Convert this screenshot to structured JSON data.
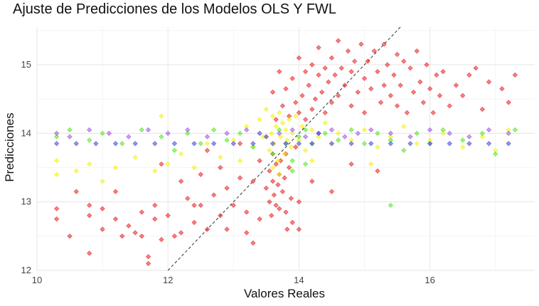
{
  "chart_data": {
    "type": "scatter",
    "title": "Ajuste de Predicciones de los Modelos OLS Y FWL",
    "xlabel": "Valores Reales",
    "ylabel": "Predicciones",
    "xlim": [
      10,
      17.6
    ],
    "ylim": [
      12,
      15.55
    ],
    "x_ticks": [
      10,
      12,
      14,
      16
    ],
    "y_ticks": [
      12,
      13,
      14,
      15
    ],
    "x_tick_labels": [
      "10",
      "12",
      "14",
      "16"
    ],
    "y_tick_labels": [
      "12",
      "13",
      "14",
      "15"
    ],
    "grid": true,
    "legend": "none",
    "reference_line": {
      "style": "dashed",
      "color": "#333333",
      "slope": 1,
      "intercept": 0
    },
    "colors": {
      "red": "#e8171b",
      "yellow": "#f2f200",
      "green": "#4de31c",
      "purple": "#9a4ee0",
      "blue": "#3c3cdc"
    },
    "series": [
      {
        "color": "#e8171b",
        "points": [
          [
            10.3,
            12.9
          ],
          [
            10.3,
            12.75
          ],
          [
            10.5,
            12.5
          ],
          [
            10.6,
            13.15
          ],
          [
            10.8,
            12.95
          ],
          [
            10.8,
            12.8
          ],
          [
            10.8,
            12.25
          ],
          [
            11.0,
            12.9
          ],
          [
            11.0,
            12.6
          ],
          [
            11.2,
            13.15
          ],
          [
            11.2,
            12.75
          ],
          [
            11.4,
            12.65
          ],
          [
            11.5,
            12.55
          ],
          [
            11.6,
            12.85
          ],
          [
            11.6,
            12.5
          ],
          [
            11.7,
            12.2
          ],
          [
            11.7,
            12.1
          ],
          [
            11.8,
            12.95
          ],
          [
            11.8,
            12.75
          ],
          [
            11.9,
            12.45
          ],
          [
            11.9,
            13.55
          ],
          [
            12.0,
            12.8
          ],
          [
            12.1,
            12.5
          ],
          [
            12.2,
            13.3
          ],
          [
            12.2,
            12.55
          ],
          [
            12.3,
            13.05
          ],
          [
            12.4,
            12.7
          ],
          [
            12.5,
            13.4
          ],
          [
            12.5,
            12.95
          ],
          [
            12.6,
            12.6
          ],
          [
            12.6,
            13.75
          ],
          [
            12.7,
            13.1
          ],
          [
            12.8,
            12.8
          ],
          [
            12.8,
            13.5
          ],
          [
            12.9,
            13.2
          ],
          [
            13.0,
            12.95
          ],
          [
            13.1,
            13.35
          ],
          [
            13.1,
            13.85
          ],
          [
            13.2,
            12.85
          ],
          [
            13.3,
            13.3
          ],
          [
            13.3,
            12.4
          ],
          [
            13.4,
            13.6
          ],
          [
            13.5,
            13.2
          ],
          [
            13.5,
            13.95
          ],
          [
            13.55,
            13.0
          ],
          [
            13.55,
            13.45
          ],
          [
            13.58,
            12.8
          ],
          [
            13.6,
            13.7
          ],
          [
            13.6,
            13.3
          ],
          [
            13.6,
            14.6
          ],
          [
            13.62,
            13.1
          ],
          [
            13.65,
            12.95
          ],
          [
            13.65,
            13.55
          ],
          [
            13.65,
            14.2
          ],
          [
            13.68,
            13.25
          ],
          [
            13.7,
            12.9
          ],
          [
            13.7,
            13.4
          ],
          [
            13.7,
            14.9
          ],
          [
            13.72,
            13.6
          ],
          [
            13.75,
            13.15
          ],
          [
            13.75,
            14.4
          ],
          [
            13.78,
            13.35
          ],
          [
            13.8,
            12.85
          ],
          [
            13.8,
            13.7
          ],
          [
            13.8,
            14.65
          ],
          [
            13.82,
            12.6
          ],
          [
            13.85,
            13.5
          ],
          [
            13.85,
            14.25
          ],
          [
            13.88,
            13.05
          ],
          [
            13.9,
            14.8
          ],
          [
            13.9,
            12.7
          ],
          [
            13.95,
            13.8
          ],
          [
            13.95,
            14.45
          ],
          [
            14.0,
            14.3
          ],
          [
            14.0,
            12.6
          ],
          [
            14.0,
            15.1
          ],
          [
            14.05,
            14.55
          ],
          [
            14.1,
            14.2
          ],
          [
            14.1,
            14.9
          ],
          [
            14.15,
            14.7
          ],
          [
            14.2,
            14.35
          ],
          [
            14.2,
            15.0
          ],
          [
            14.25,
            14.5
          ],
          [
            14.3,
            14.85
          ],
          [
            14.3,
            15.25
          ],
          [
            14.35,
            14.6
          ],
          [
            14.4,
            14.3
          ],
          [
            14.4,
            14.95
          ],
          [
            14.45,
            14.75
          ],
          [
            14.5,
            15.1
          ],
          [
            14.5,
            14.45
          ],
          [
            14.55,
            14.85
          ],
          [
            14.6,
            15.35
          ],
          [
            14.6,
            14.55
          ],
          [
            14.65,
            14.95
          ],
          [
            14.7,
            14.7
          ],
          [
            14.75,
            15.2
          ],
          [
            14.8,
            14.4
          ],
          [
            14.8,
            14.9
          ],
          [
            14.85,
            15.05
          ],
          [
            14.9,
            14.6
          ],
          [
            14.95,
            15.3
          ],
          [
            15.0,
            14.8
          ],
          [
            15.0,
            14.3
          ],
          [
            15.05,
            15.05
          ],
          [
            15.1,
            14.65
          ],
          [
            15.15,
            15.2
          ],
          [
            15.2,
            14.9
          ],
          [
            15.25,
            14.45
          ],
          [
            15.3,
            15.3
          ],
          [
            15.3,
            14.7
          ],
          [
            15.35,
            15.0
          ],
          [
            15.4,
            14.55
          ],
          [
            15.45,
            14.85
          ],
          [
            15.5,
            15.15
          ],
          [
            15.5,
            14.4
          ],
          [
            15.55,
            14.7
          ],
          [
            15.6,
            15.05
          ],
          [
            15.65,
            14.3
          ],
          [
            15.7,
            14.95
          ],
          [
            15.75,
            14.6
          ],
          [
            15.8,
            15.2
          ],
          [
            15.85,
            14.75
          ],
          [
            15.9,
            14.45
          ],
          [
            15.95,
            15.0
          ],
          [
            16.0,
            14.65
          ],
          [
            16.05,
            14.3
          ],
          [
            16.1,
            14.85
          ],
          [
            16.15,
            14.55
          ],
          [
            16.2,
            14.9
          ],
          [
            16.3,
            14.4
          ],
          [
            16.4,
            14.7
          ],
          [
            16.5,
            14.55
          ],
          [
            16.6,
            14.85
          ],
          [
            16.7,
            14.95
          ],
          [
            16.8,
            14.35
          ],
          [
            16.9,
            14.75
          ],
          [
            17.1,
            14.65
          ],
          [
            17.2,
            14.45
          ],
          [
            17.3,
            14.85
          ],
          [
            14.5,
            13.15
          ],
          [
            14.2,
            13.3
          ],
          [
            14.8,
            13.55
          ],
          [
            15.2,
            13.45
          ],
          [
            14.0,
            13.0
          ],
          [
            13.4,
            12.75
          ],
          [
            13.2,
            12.55
          ],
          [
            12.9,
            12.6
          ],
          [
            12.4,
            12.95
          ],
          [
            11.3,
            12.5
          ]
        ]
      },
      {
        "color": "#f2f200",
        "points": [
          [
            10.3,
            13.6
          ],
          [
            10.3,
            13.4
          ],
          [
            10.6,
            13.45
          ],
          [
            10.8,
            13.55
          ],
          [
            11.0,
            13.3
          ],
          [
            11.2,
            13.5
          ],
          [
            11.5,
            13.65
          ],
          [
            11.8,
            13.45
          ],
          [
            11.9,
            14.25
          ],
          [
            12.0,
            13.55
          ],
          [
            12.2,
            13.7
          ],
          [
            12.4,
            13.5
          ],
          [
            12.6,
            13.85
          ],
          [
            12.8,
            13.65
          ],
          [
            13.0,
            13.9
          ],
          [
            13.1,
            13.6
          ],
          [
            13.2,
            14.1
          ],
          [
            13.3,
            13.8
          ],
          [
            13.4,
            14.2
          ],
          [
            13.45,
            13.95
          ],
          [
            13.5,
            14.35
          ],
          [
            13.55,
            13.75
          ],
          [
            13.58,
            14.0
          ],
          [
            13.6,
            14.25
          ],
          [
            13.62,
            13.85
          ],
          [
            13.65,
            14.1
          ],
          [
            13.68,
            13.6
          ],
          [
            13.7,
            14.3
          ],
          [
            13.72,
            13.95
          ],
          [
            13.75,
            14.15
          ],
          [
            13.78,
            13.7
          ],
          [
            13.8,
            14.05
          ],
          [
            13.82,
            13.9
          ],
          [
            13.85,
            14.2
          ],
          [
            13.88,
            13.8
          ],
          [
            13.9,
            14.0
          ],
          [
            13.95,
            14.25
          ],
          [
            14.0,
            13.9
          ],
          [
            14.05,
            14.1
          ],
          [
            14.1,
            13.75
          ],
          [
            14.2,
            14.05
          ],
          [
            14.3,
            13.95
          ],
          [
            14.4,
            14.15
          ],
          [
            14.5,
            13.85
          ],
          [
            14.6,
            14.0
          ],
          [
            14.8,
            13.9
          ],
          [
            15.0,
            14.05
          ],
          [
            15.2,
            13.8
          ],
          [
            15.4,
            13.95
          ],
          [
            15.6,
            14.1
          ],
          [
            15.8,
            13.85
          ],
          [
            16.0,
            13.9
          ],
          [
            16.2,
            14.0
          ],
          [
            16.5,
            13.8
          ],
          [
            16.8,
            13.95
          ],
          [
            17.0,
            13.75
          ],
          [
            17.2,
            14.05
          ],
          [
            13.6,
            13.5
          ],
          [
            13.7,
            13.4
          ],
          [
            14.2,
            13.6
          ],
          [
            15.1,
            13.55
          ]
        ]
      },
      {
        "color": "#4de31c",
        "points": [
          [
            10.3,
            13.95
          ],
          [
            10.5,
            14.05
          ],
          [
            10.8,
            13.9
          ],
          [
            11.0,
            14.0
          ],
          [
            11.3,
            13.85
          ],
          [
            11.6,
            14.05
          ],
          [
            11.9,
            13.95
          ],
          [
            12.1,
            13.75
          ],
          [
            12.3,
            14.0
          ],
          [
            12.5,
            13.85
          ],
          [
            12.7,
            14.05
          ],
          [
            12.9,
            13.9
          ],
          [
            13.1,
            14.0
          ],
          [
            13.3,
            13.8
          ],
          [
            13.5,
            13.95
          ],
          [
            13.6,
            13.7
          ],
          [
            13.7,
            14.05
          ],
          [
            13.8,
            13.85
          ],
          [
            13.9,
            13.6
          ],
          [
            14.0,
            13.95
          ],
          [
            14.1,
            14.05
          ],
          [
            14.2,
            13.85
          ],
          [
            14.4,
            14.0
          ],
          [
            14.6,
            13.9
          ],
          [
            14.8,
            14.05
          ],
          [
            15.0,
            13.85
          ],
          [
            15.2,
            14.0
          ],
          [
            15.4,
            13.9
          ],
          [
            15.6,
            13.75
          ],
          [
            15.8,
            14.0
          ],
          [
            16.0,
            13.85
          ],
          [
            16.2,
            14.05
          ],
          [
            16.5,
            13.9
          ],
          [
            16.8,
            14.0
          ],
          [
            17.0,
            13.7
          ],
          [
            17.3,
            14.05
          ],
          [
            15.4,
            12.95
          ],
          [
            13.9,
            13.45
          ],
          [
            14.1,
            13.55
          ]
        ]
      },
      {
        "color": "#9a4ee0",
        "points": [
          [
            10.3,
            14.0
          ],
          [
            10.5,
            13.95
          ],
          [
            10.8,
            14.05
          ],
          [
            11.1,
            14.0
          ],
          [
            11.4,
            13.95
          ],
          [
            11.7,
            14.05
          ],
          [
            12.0,
            14.0
          ],
          [
            12.3,
            14.05
          ],
          [
            12.6,
            13.95
          ],
          [
            12.9,
            14.0
          ],
          [
            13.2,
            14.05
          ],
          [
            13.5,
            13.95
          ],
          [
            13.7,
            14.0
          ],
          [
            13.9,
            14.05
          ],
          [
            14.1,
            13.95
          ],
          [
            14.3,
            14.0
          ],
          [
            14.5,
            14.05
          ],
          [
            14.7,
            13.95
          ],
          [
            14.9,
            14.0
          ],
          [
            15.1,
            14.05
          ],
          [
            15.4,
            14.0
          ],
          [
            15.7,
            13.95
          ],
          [
            16.0,
            14.05
          ],
          [
            16.3,
            14.0
          ],
          [
            16.6,
            13.95
          ],
          [
            16.9,
            14.05
          ],
          [
            17.2,
            14.0
          ]
        ]
      },
      {
        "color": "#3c3cdc",
        "points": [
          [
            10.3,
            13.85
          ],
          [
            10.6,
            13.85
          ],
          [
            10.9,
            13.85
          ],
          [
            11.2,
            13.85
          ],
          [
            11.5,
            13.85
          ],
          [
            11.8,
            13.85
          ],
          [
            12.1,
            13.85
          ],
          [
            12.4,
            13.85
          ],
          [
            12.7,
            13.85
          ],
          [
            13.0,
            13.85
          ],
          [
            13.3,
            13.85
          ],
          [
            13.6,
            13.85
          ],
          [
            13.8,
            13.85
          ],
          [
            14.0,
            13.85
          ],
          [
            14.2,
            13.85
          ],
          [
            14.5,
            13.85
          ],
          [
            14.8,
            13.85
          ],
          [
            15.1,
            13.85
          ],
          [
            15.4,
            13.85
          ],
          [
            15.7,
            13.85
          ],
          [
            16.0,
            13.85
          ],
          [
            16.3,
            13.85
          ],
          [
            16.6,
            13.85
          ],
          [
            16.9,
            13.85
          ],
          [
            17.2,
            13.85
          ],
          [
            13.4,
            14.0
          ],
          [
            14.3,
            14.0
          ]
        ]
      }
    ]
  }
}
